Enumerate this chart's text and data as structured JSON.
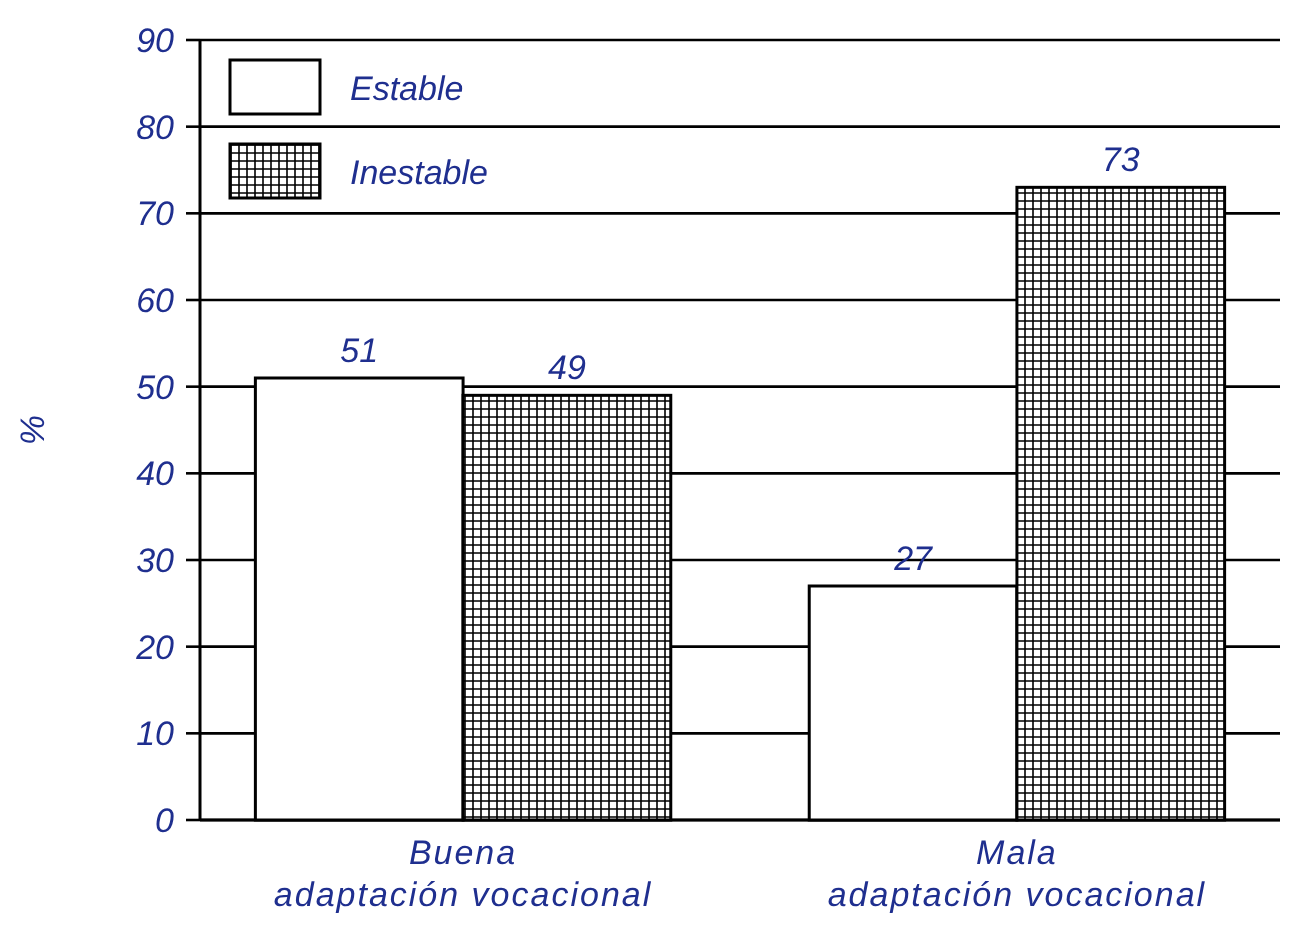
{
  "chart_data": {
    "type": "bar",
    "ylabel": "%",
    "categories": [
      "Buena adaptación vocacional",
      "Mala adaptación vocacional"
    ],
    "series": [
      {
        "name": "Estable",
        "color": "#ffffff",
        "values": [
          51,
          27
        ]
      },
      {
        "name": "Inestable",
        "color": "#000000",
        "values": [
          49,
          73
        ]
      }
    ],
    "ylim": [
      0,
      90
    ],
    "yticks": [
      0,
      10,
      20,
      30,
      40,
      50,
      60,
      70,
      80,
      90
    ],
    "grid": "y",
    "legend": "top left",
    "data_labels": true
  }
}
